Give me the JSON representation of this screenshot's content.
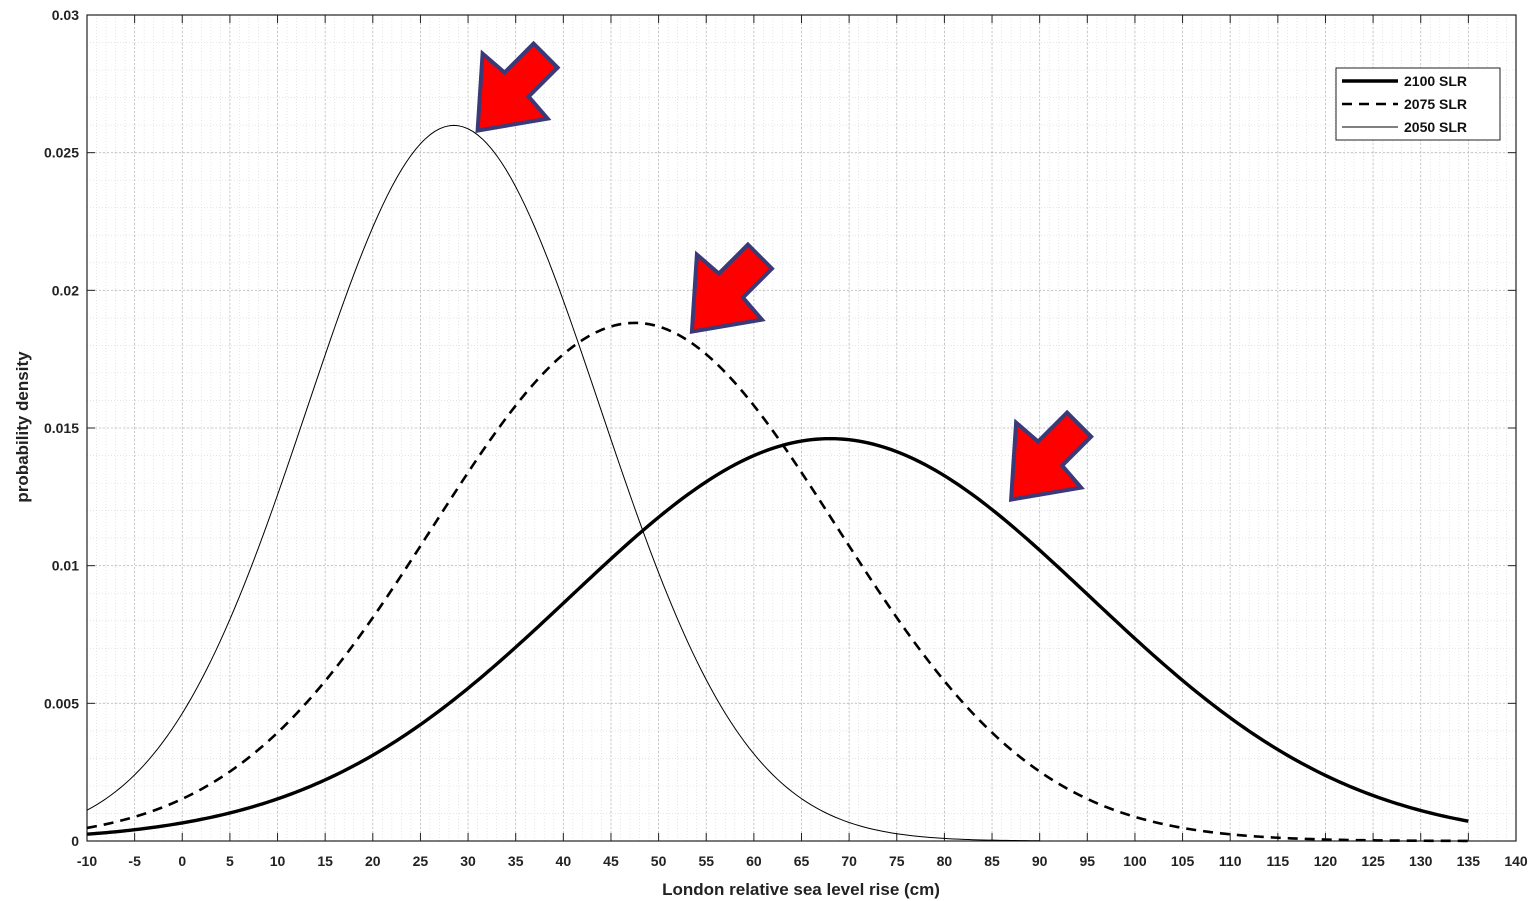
{
  "chart_data": {
    "type": "line",
    "title": "",
    "xlabel": "London relative sea level rise (cm)",
    "ylabel": "probability density",
    "xlim": [
      -10,
      140
    ],
    "ylim": [
      0,
      0.03
    ],
    "x_ticks": [
      -10,
      -5,
      0,
      5,
      10,
      15,
      20,
      25,
      30,
      35,
      40,
      45,
      50,
      55,
      60,
      65,
      70,
      75,
      80,
      85,
      90,
      95,
      100,
      105,
      110,
      115,
      120,
      125,
      130,
      135,
      140
    ],
    "y_ticks": [
      0,
      0.005,
      0.01,
      0.015,
      0.02,
      0.025,
      0.03
    ],
    "y_tick_labels": [
      "0",
      "0.005",
      "0.01",
      "0.015",
      "0.02",
      "0.025",
      "0.03"
    ],
    "grid": true,
    "minor_grid": true,
    "legend_position": "top-right",
    "colors": {
      "lines": "#000000",
      "arrow_fill": "#ff0000",
      "arrow_stroke": "#3a3a78"
    },
    "series": [
      {
        "name": "2100 SLR",
        "style": "thick-solid",
        "mean": 68,
        "sd": 27.3,
        "x_range": [
          -10,
          135
        ]
      },
      {
        "name": "2075 SLR",
        "style": "dashed",
        "mean": 47.5,
        "sd": 21.2,
        "x_range": [
          -10,
          135
        ]
      },
      {
        "name": "2050 SLR",
        "style": "thin-solid",
        "mean": 28.5,
        "sd": 15.35,
        "x_range": [
          -10,
          90
        ]
      }
    ],
    "annotations": [
      {
        "type": "arrow",
        "points_to": {
          "x": 31,
          "y": 0.0258
        }
      },
      {
        "type": "arrow",
        "points_to": {
          "x": 53.5,
          "y": 0.0185
        }
      },
      {
        "type": "arrow",
        "points_to": {
          "x": 87,
          "y": 0.0124
        }
      }
    ]
  }
}
